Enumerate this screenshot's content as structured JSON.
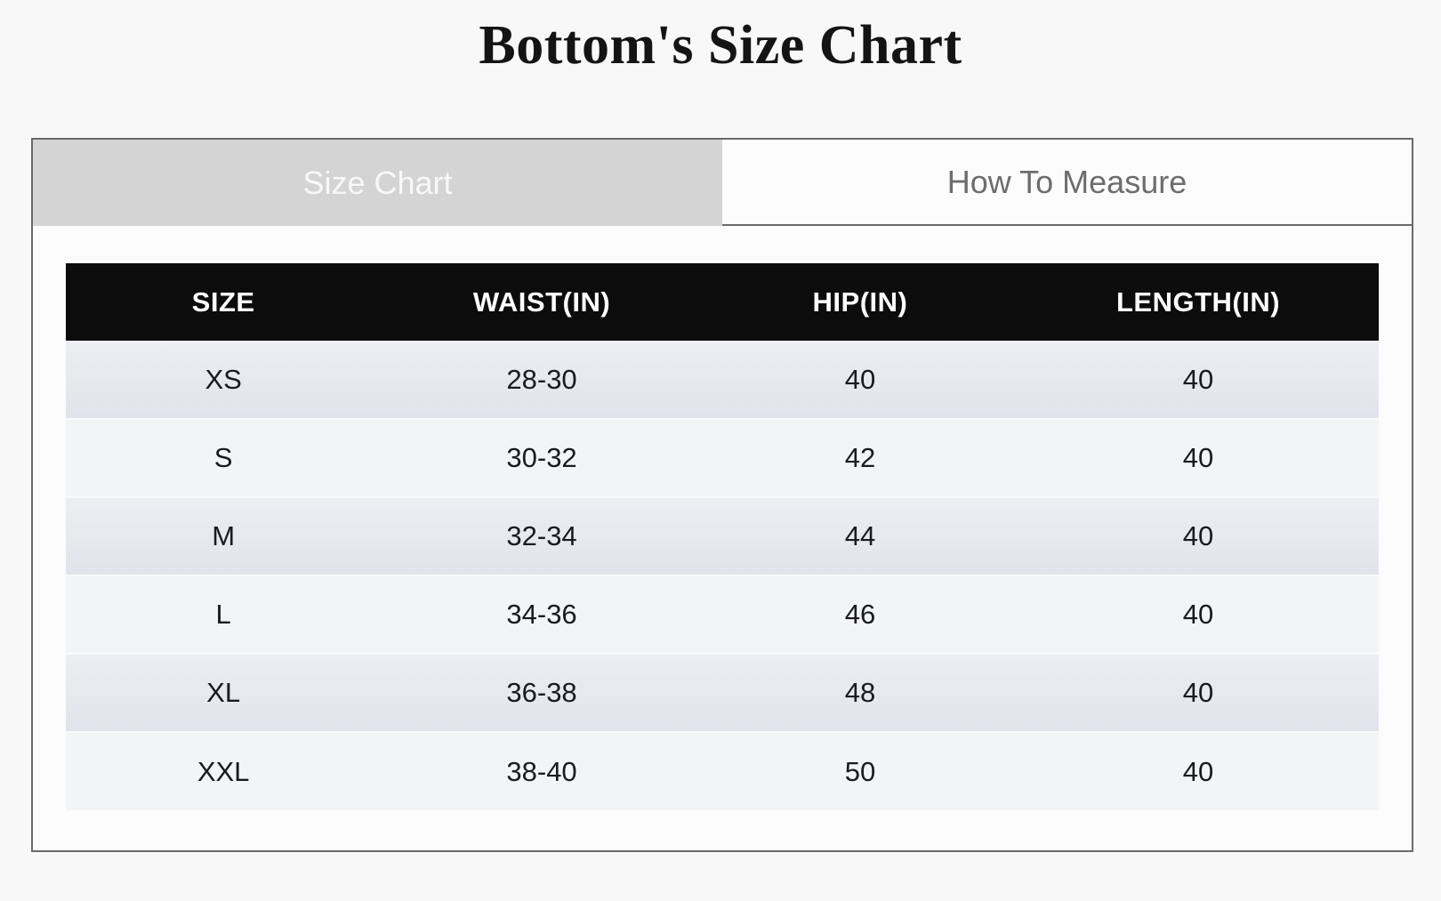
{
  "page": {
    "title": "Bottom's Size Chart"
  },
  "tabs": [
    {
      "label": "Size Chart",
      "active": true
    },
    {
      "label": "How To Measure",
      "active": false
    }
  ],
  "size_table": {
    "columns": [
      "SIZE",
      "WAIST(IN)",
      "HIP(IN)",
      "LENGTH(IN)"
    ],
    "rows": [
      [
        "XS",
        "28-30",
        "40",
        "40"
      ],
      [
        "S",
        "30-32",
        "42",
        "40"
      ],
      [
        "M",
        "32-34",
        "44",
        "40"
      ],
      [
        "L",
        "34-36",
        "46",
        "40"
      ],
      [
        "XL",
        "36-38",
        "48",
        "40"
      ],
      [
        "XXL",
        "38-40",
        "50",
        "40"
      ]
    ]
  },
  "colors": {
    "page_background": "#f8f8f8",
    "panel_background": "#fcfcfc",
    "panel_border": "#6a6a6a",
    "table_header_bg": "#0c0c0c",
    "table_header_text": "#ffffff",
    "active_tab_bg": "#d4d4d4",
    "active_tab_text": "#f8f8f8",
    "inactive_tab_text": "#6d6d6d",
    "row_alt_bg": "#e6e8ef",
    "row_light_bg": "#f3f4f6"
  }
}
